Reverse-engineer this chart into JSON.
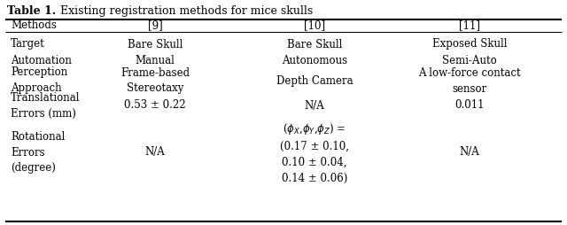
{
  "title": "Table 1.",
  "title_rest": "   Existing registration methods for mice skulls",
  "col_headers": [
    "Methods",
    "[9]",
    "[10]",
    "[11]"
  ],
  "rows_col0": [
    "Target\nAutomation",
    "Perception\nApproach",
    "Translational\nErrors (mm)",
    "Rotational\nErrors\n(degree)"
  ],
  "rows_col1": [
    "Bare Skull\nManual",
    "Frame-based\nStereotaxy",
    "0.53 ± 0.22",
    "N/A"
  ],
  "rows_col2": [
    "Bare Skull\nAutonomous",
    "Depth Camera",
    "N/A",
    "($\\phi_X$,$\\phi_Y$,$\\phi_Z$) =\n(0.17 ± 0.10,\n0.10 ± 0.04,\n0.14 ± 0.06)"
  ],
  "rows_col3": [
    "Exposed Skull\nSemi-Auto",
    "A low-force contact\nsensor",
    "0.011",
    "N/A"
  ],
  "background_color": "#ffffff",
  "text_color": "#000000",
  "fontsize": 8.5,
  "title_fontsize": 9.0
}
